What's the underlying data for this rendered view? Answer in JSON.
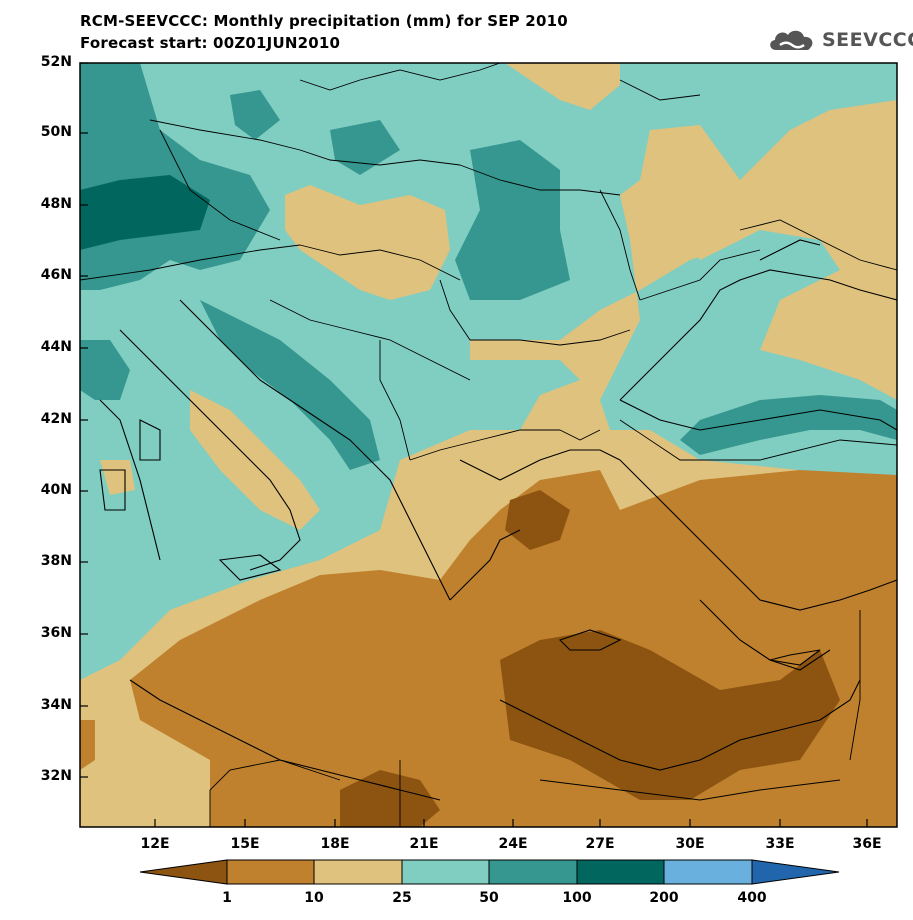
{
  "header": {
    "title": "RCM-SEEVCCC: Monthly precipitation (mm) for SEP 2010",
    "subtitle": "Forecast start: 00Z01JUN2010"
  },
  "logo": {
    "text": "SEEVCCC",
    "icon": "cloud-icon"
  },
  "map": {
    "lat_labels": [
      "52N",
      "50N",
      "48N",
      "46N",
      "44N",
      "42N",
      "40N",
      "38N",
      "36N",
      "34N",
      "32N"
    ],
    "lon_labels": [
      "12E",
      "15E",
      "18E",
      "21E",
      "24E",
      "27E",
      "30E",
      "33E",
      "36E"
    ]
  },
  "colorbar": {
    "labels": [
      "1",
      "10",
      "25",
      "50",
      "100",
      "200",
      "400"
    ],
    "colors": [
      "#8c5410",
      "#bf812d",
      "#dfc27d",
      "#80cdc1",
      "#35978f",
      "#01665e",
      "#6ab0de",
      "#2166ac"
    ]
  }
}
